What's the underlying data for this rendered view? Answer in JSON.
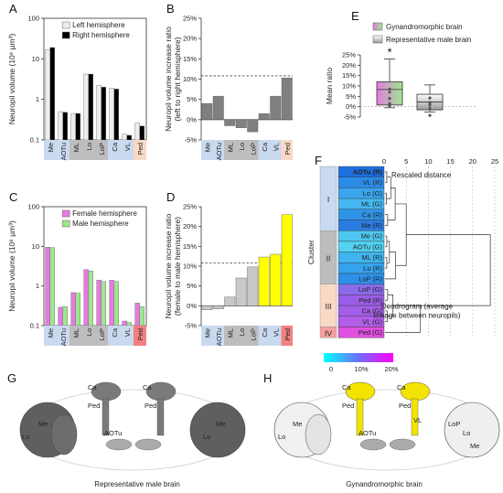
{
  "panel_letters": {
    "A": "A",
    "B": "B",
    "C": "C",
    "D": "D",
    "E": "E",
    "F": "F",
    "G": "G",
    "H": "H"
  },
  "colors": {
    "left_hem": "#ededed",
    "right_hem": "#000000",
    "female_hem": "#e57be0",
    "male_hem": "#9ee68f",
    "gray_bar": "#808080",
    "lightgray_bar": "#c8c8c8",
    "yellow_bar": "#ffff00",
    "band_blue": "#c9d9ef",
    "band_gray": "#bdbdbd",
    "band_peach": "#f9d9c6",
    "band_red": "#f28080"
  },
  "chart_data": [
    {
      "id": "A",
      "type": "bar",
      "ylabel": "Neuropil volume (10⁶ μm³)",
      "yscale": "log",
      "ylim": [
        0.1,
        100
      ],
      "yticks": [
        "100",
        "10",
        "1",
        "0.1"
      ],
      "categories": [
        "Me",
        "AOTu",
        "ML",
        "Lo",
        "LoP",
        "Ca",
        "VL",
        "Ped"
      ],
      "series": [
        {
          "name": "Left hemisphere",
          "values": [
            17,
            0.5,
            0.45,
            4.2,
            2.2,
            1.9,
            0.14,
            0.26
          ]
        },
        {
          "name": "Right hemisphere",
          "values": [
            19,
            0.48,
            0.45,
            4.2,
            2.0,
            1.8,
            0.13,
            0.22
          ]
        }
      ],
      "legend": "top-right"
    },
    {
      "id": "B",
      "type": "bar",
      "ylabel": "Neuropil volume increase ratio\n(left to right hemisphere)",
      "ylim": [
        -5,
        25
      ],
      "yticks": [
        "25%",
        "20%",
        "15%",
        "10%",
        "5%",
        "0%",
        "-5%"
      ],
      "categories": [
        "Me",
        "AOTu",
        "ML",
        "Lo",
        "LoP",
        "Ca",
        "VL",
        "Ped"
      ],
      "values": [
        4.0,
        5.8,
        -1.5,
        -2.0,
        -3.0,
        1.5,
        5.8,
        10.3
      ],
      "reference_line": 10.8
    },
    {
      "id": "C",
      "type": "bar",
      "ylabel": "Neuropil volume (10⁶ μm³)",
      "yscale": "log",
      "ylim": [
        0.1,
        100
      ],
      "yticks": [
        "100",
        "10",
        "1",
        "0.1"
      ],
      "categories": [
        "Me",
        "AOTu",
        "ML",
        "Lo",
        "LoP",
        "Ca",
        "VL",
        "Ped"
      ],
      "series": [
        {
          "name": "Female hemisphere",
          "values": [
            9.5,
            0.29,
            0.68,
            2.6,
            1.4,
            1.4,
            0.13,
            0.37
          ]
        },
        {
          "name": "Male hemisphere",
          "values": [
            9.3,
            0.3,
            0.66,
            2.4,
            1.3,
            1.3,
            0.12,
            0.3
          ]
        }
      ],
      "legend": "top-right"
    },
    {
      "id": "D",
      "type": "bar",
      "ylabel": "Neuropil volume increase ratio\n(female to male hemisphere)",
      "ylim": [
        -5,
        25
      ],
      "yticks": [
        "25%",
        "20%",
        "15%",
        "10%",
        "5%",
        "0%",
        "-5%"
      ],
      "categories": [
        "Me",
        "AOTu",
        "ML",
        "Lo",
        "LoP",
        "Ca",
        "VL",
        "Ped"
      ],
      "values": [
        -1.0,
        -0.8,
        2.2,
        7.0,
        9.8,
        12.3,
        13.0,
        23.0
      ],
      "reference_line": 10.8
    },
    {
      "id": "E",
      "type": "box",
      "ylabel": "Mean ratio",
      "ylim": [
        -5,
        25
      ],
      "yticks": [
        "25%",
        "20%",
        "15%",
        "10%",
        "5%",
        "0%",
        "-5%"
      ],
      "series": [
        {
          "name": "Gynandromorphic brain",
          "q1": 0.8,
          "median": 8.3,
          "q3": 12,
          "min": -0.5,
          "max": 23,
          "points": [
            8.5,
            7,
            4,
            1.5,
            0.5
          ]
        },
        {
          "name": "Representative male brain",
          "q1": -1.5,
          "median": 2.3,
          "q3": 6,
          "min": -2.5,
          "max": 10.5,
          "points": [
            4.2,
            2,
            0.8,
            -0.8,
            -4.2
          ]
        }
      ],
      "significance": "*"
    },
    {
      "id": "F",
      "type": "dendrogram",
      "title": "Rescaled distance",
      "xticks": [
        "0",
        "5",
        "10",
        "15",
        "20",
        "25"
      ],
      "ylabel": "Cluster",
      "clusters": [
        "I",
        "II",
        "III",
        "IV"
      ],
      "leaves": [
        "AOTu (R)",
        "VL (R)",
        "Lo (G)",
        "ML (G)",
        "Ca (R)",
        "Me (R)",
        "Me (G)",
        "AOTu (G)",
        "ML (R)",
        "Lo (R)",
        "LoP (R)",
        "LoP (G)",
        "Ped (R)",
        "Ca (G)",
        "VL (G)",
        "Ped (G)"
      ],
      "annotation": "Dendrogram (average\nlinkage between neuropils)",
      "colorbar_ticks": [
        "0",
        "10%",
        "20%"
      ]
    }
  ],
  "captions": {
    "G": "Representative male brain",
    "H": "Gynandromorphic brain"
  },
  "brain_labels": {
    "G": [
      "Me",
      "Lo",
      "AOTu",
      "Ped",
      "Ped",
      "Me",
      "Lo",
      "Ca",
      "Ca"
    ],
    "H": [
      "Me",
      "Lo",
      "AOTu",
      "Ped",
      "Ped",
      "VL",
      "Ca",
      "Ca",
      "LoP",
      "Lo",
      "Me"
    ]
  }
}
